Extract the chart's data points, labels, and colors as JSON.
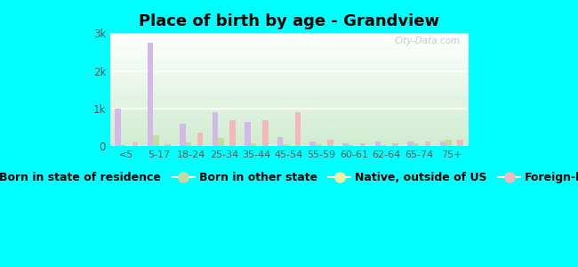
{
  "title": "Place of birth by age - Grandview",
  "categories": [
    "<5",
    "5-17",
    "18-24",
    "25-34",
    "35-44",
    "45-54",
    "55-59",
    "60-61",
    "62-64",
    "65-74",
    "75+"
  ],
  "series": {
    "Born in state of residence": [
      1000,
      2750,
      600,
      900,
      650,
      250,
      130,
      80,
      120,
      130,
      130
    ],
    "Born in other state": [
      20,
      280,
      90,
      230,
      80,
      50,
      50,
      40,
      30,
      70,
      160
    ],
    "Native, outside of US": [
      10,
      20,
      30,
      20,
      30,
      40,
      10,
      10,
      10,
      20,
      20
    ],
    "Foreign-born": [
      100,
      50,
      350,
      700,
      680,
      900,
      180,
      80,
      70,
      130,
      160
    ]
  },
  "colors": {
    "Born in state of residence": "#d4b8e8",
    "Born in other state": "#c8d9a0",
    "Native, outside of US": "#f0f0a0",
    "Foreign-born": "#f5b8b8"
  },
  "ylim": [
    0,
    3000
  ],
  "yticks": [
    0,
    1000,
    2000,
    3000
  ],
  "ytick_labels": [
    "0",
    "1k",
    "2k",
    "3k"
  ],
  "background_color": "#00ffff",
  "bar_width": 0.18,
  "title_fontsize": 13,
  "legend_fontsize": 9,
  "watermark": "City-Data.com"
}
